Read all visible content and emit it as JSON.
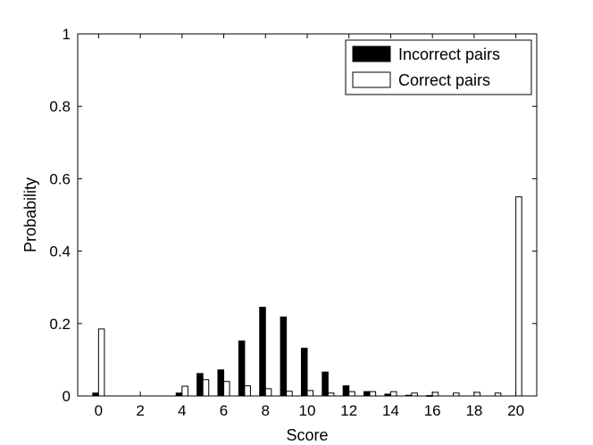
{
  "chart_data": {
    "type": "bar",
    "title": "",
    "xlabel": "Score",
    "ylabel": "Probability",
    "xlim": [
      -1,
      21
    ],
    "ylim": [
      0,
      1
    ],
    "xticks": [
      0,
      2,
      4,
      6,
      8,
      10,
      12,
      14,
      16,
      18,
      20
    ],
    "yticks": [
      0,
      0.2,
      0.4,
      0.6,
      0.8,
      1
    ],
    "x": [
      0,
      1,
      2,
      3,
      4,
      5,
      6,
      7,
      8,
      9,
      10,
      11,
      12,
      13,
      14,
      15,
      16,
      17,
      18,
      19,
      20
    ],
    "grid": false,
    "legend_position": "top-right",
    "series": [
      {
        "name": "Incorrect pairs",
        "color": "#000000",
        "fill": "#000000",
        "values": [
          0.008,
          0,
          0,
          0,
          0.008,
          0.062,
          0.072,
          0.152,
          0.245,
          0.218,
          0.132,
          0.066,
          0.028,
          0.012,
          0.005,
          0.002,
          0.001,
          0,
          0,
          0,
          0
        ]
      },
      {
        "name": "Correct pairs",
        "color": "#000000",
        "fill": "#ffffff",
        "values": [
          0.185,
          0,
          0,
          0,
          0.027,
          0.045,
          0.04,
          0.028,
          0.02,
          0.013,
          0.015,
          0.008,
          0.012,
          0.012,
          0.012,
          0.008,
          0.01,
          0.008,
          0.01,
          0.008,
          0.55
        ]
      }
    ]
  }
}
